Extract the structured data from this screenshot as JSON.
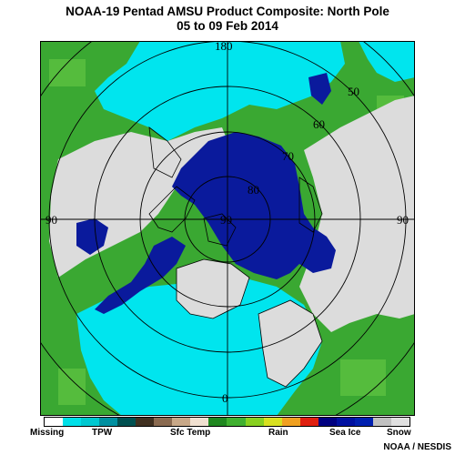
{
  "title": "NOAA-19 Pentad AMSU Product Composite: North Pole",
  "subtitle": "05 to 09 Feb 2014",
  "credit": "NOAA / NESDIS",
  "map": {
    "lat_labels": [
      "90",
      "80",
      "70",
      "60",
      "50"
    ],
    "lon_labels": {
      "top": "180",
      "bottom": "0",
      "left": "90",
      "right": "90"
    }
  },
  "legend": {
    "labels": [
      "Missing",
      "TPW",
      "Sfc Temp",
      "Rain",
      "Sea Ice",
      "Snow"
    ],
    "colors": [
      "#ffffff",
      "#00e0e8",
      "#00c8d0",
      "#0090a0",
      "#005050",
      "#403020",
      "#8a6a50",
      "#c8a888",
      "#f0e0d0",
      "#208820",
      "#40b030",
      "#88d020",
      "#d8e020",
      "#f0a020",
      "#e02010",
      "#000080",
      "#0010a0",
      "#0020b0",
      "#c0c0c0",
      "#e0e0e0"
    ]
  },
  "palette": {
    "water": "#00e5ee",
    "sea_ice": "#0a1a9c",
    "snow": "#dcdcdc",
    "land": "#3aa832"
  }
}
